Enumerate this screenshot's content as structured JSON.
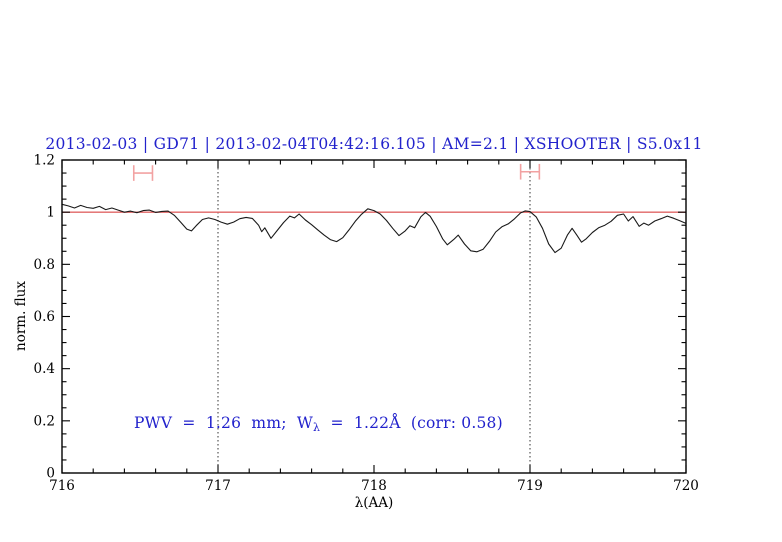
{
  "chart_data": {
    "type": "line",
    "title": "2013-02-03 | GD71 | 2013-02-04T04:42:16.105 | AM=2.1 | XSHOOTER | S5.0x11",
    "xlabel": "λ(AA)",
    "ylabel": "norm. flux",
    "xlim": [
      716,
      720
    ],
    "ylim": [
      0,
      1.2
    ],
    "grid": "off",
    "legend": "none",
    "x_ticks": {
      "values": [
        716,
        717,
        718,
        719,
        720
      ],
      "labels": [
        "716",
        "717",
        "718",
        "719",
        "720"
      ],
      "minor_step": 0.2
    },
    "y_ticks": {
      "values": [
        0,
        0.2,
        0.4,
        0.6,
        0.8,
        1,
        1.2
      ],
      "labels": [
        "0",
        "0.2",
        "0.4",
        "0.6",
        "0.8",
        "1",
        "1.2"
      ],
      "minor_step": 0.05
    },
    "reference_line_y": 1.0,
    "dotted_vlines_x": [
      717,
      719
    ],
    "range_markers": [
      {
        "x_center": 716.52,
        "half_width": 0.06,
        "y": 1.15,
        "cap_half_height": 0.03
      },
      {
        "x_center": 719.0,
        "half_width": 0.06,
        "y": 1.155,
        "cap_half_height": 0.03
      }
    ],
    "series": [
      {
        "name": "normalized-spectrum",
        "points": [
          [
            716.0,
            1.03
          ],
          [
            716.04,
            1.024
          ],
          [
            716.08,
            1.016
          ],
          [
            716.12,
            1.026
          ],
          [
            716.16,
            1.018
          ],
          [
            716.2,
            1.015
          ],
          [
            716.24,
            1.022
          ],
          [
            716.28,
            1.01
          ],
          [
            716.32,
            1.016
          ],
          [
            716.36,
            1.008
          ],
          [
            716.4,
            1.0
          ],
          [
            716.44,
            1.004
          ],
          [
            716.48,
            0.998
          ],
          [
            716.52,
            1.006
          ],
          [
            716.56,
            1.008
          ],
          [
            716.6,
            0.999
          ],
          [
            716.64,
            1.003
          ],
          [
            716.68,
            1.004
          ],
          [
            716.72,
            0.988
          ],
          [
            716.76,
            0.962
          ],
          [
            716.8,
            0.935
          ],
          [
            716.83,
            0.928
          ],
          [
            716.86,
            0.948
          ],
          [
            716.9,
            0.972
          ],
          [
            716.94,
            0.978
          ],
          [
            716.98,
            0.972
          ],
          [
            717.02,
            0.962
          ],
          [
            717.06,
            0.954
          ],
          [
            717.1,
            0.962
          ],
          [
            717.14,
            0.975
          ],
          [
            717.18,
            0.98
          ],
          [
            717.22,
            0.976
          ],
          [
            717.26,
            0.95
          ],
          [
            717.28,
            0.925
          ],
          [
            717.3,
            0.94
          ],
          [
            717.34,
            0.9
          ],
          [
            717.38,
            0.93
          ],
          [
            717.42,
            0.96
          ],
          [
            717.46,
            0.985
          ],
          [
            717.49,
            0.978
          ],
          [
            717.52,
            0.993
          ],
          [
            717.56,
            0.97
          ],
          [
            717.6,
            0.952
          ],
          [
            717.64,
            0.932
          ],
          [
            717.68,
            0.912
          ],
          [
            717.72,
            0.895
          ],
          [
            717.76,
            0.887
          ],
          [
            717.8,
            0.902
          ],
          [
            717.84,
            0.932
          ],
          [
            717.88,
            0.965
          ],
          [
            717.92,
            0.992
          ],
          [
            717.96,
            1.013
          ],
          [
            718.0,
            1.006
          ],
          [
            718.04,
            0.993
          ],
          [
            718.08,
            0.968
          ],
          [
            718.12,
            0.938
          ],
          [
            718.16,
            0.91
          ],
          [
            718.2,
            0.928
          ],
          [
            718.23,
            0.948
          ],
          [
            718.26,
            0.94
          ],
          [
            718.3,
            0.982
          ],
          [
            718.33,
            0.999
          ],
          [
            718.36,
            0.984
          ],
          [
            718.4,
            0.945
          ],
          [
            718.44,
            0.898
          ],
          [
            718.47,
            0.875
          ],
          [
            718.51,
            0.895
          ],
          [
            718.54,
            0.912
          ],
          [
            718.58,
            0.878
          ],
          [
            718.62,
            0.852
          ],
          [
            718.66,
            0.848
          ],
          [
            718.7,
            0.858
          ],
          [
            718.74,
            0.888
          ],
          [
            718.78,
            0.924
          ],
          [
            718.82,
            0.944
          ],
          [
            718.86,
            0.955
          ],
          [
            718.9,
            0.974
          ],
          [
            718.94,
            0.997
          ],
          [
            718.97,
            1.005
          ],
          [
            719.0,
            1.002
          ],
          [
            719.04,
            0.982
          ],
          [
            719.08,
            0.938
          ],
          [
            719.12,
            0.878
          ],
          [
            719.16,
            0.845
          ],
          [
            719.2,
            0.862
          ],
          [
            719.24,
            0.912
          ],
          [
            719.27,
            0.938
          ],
          [
            719.3,
            0.912
          ],
          [
            719.33,
            0.885
          ],
          [
            719.36,
            0.898
          ],
          [
            719.4,
            0.922
          ],
          [
            719.44,
            0.94
          ],
          [
            719.48,
            0.95
          ],
          [
            719.52,
            0.965
          ],
          [
            719.56,
            0.988
          ],
          [
            719.6,
            0.993
          ],
          [
            719.63,
            0.966
          ],
          [
            719.66,
            0.983
          ],
          [
            719.7,
            0.946
          ],
          [
            719.73,
            0.958
          ],
          [
            719.76,
            0.95
          ],
          [
            719.8,
            0.966
          ],
          [
            719.84,
            0.975
          ],
          [
            719.88,
            0.985
          ],
          [
            719.92,
            0.977
          ],
          [
            719.96,
            0.967
          ],
          [
            720.0,
            0.957
          ]
        ]
      }
    ]
  },
  "annotation": {
    "prefix": "PWV  =  1.26  mm;  W",
    "subscript": "λ",
    "suffix": "  =  1.22Å  (corr: 0.58)"
  },
  "colors": {
    "title_blue": "#2222cc",
    "annotation_blue": "#2222cc",
    "reference_line_red": "#e06666",
    "marker_pink": "#f2a2a2",
    "spectrum_black": "#1a1a1a",
    "axis_black": "#000000",
    "dotted_guide": "#333333"
  }
}
